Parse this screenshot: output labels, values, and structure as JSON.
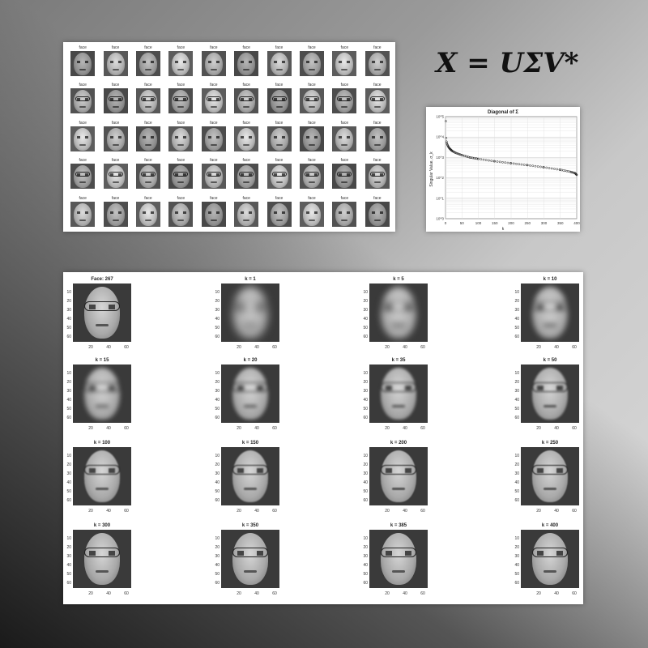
{
  "equation": "X = UΣV*",
  "faces_panel": {
    "label_prefix": "face",
    "rows": 5,
    "cols": 10
  },
  "sv_chart": {
    "title": "Diagonal of Σ",
    "xlabel": "k",
    "ylabel": "Singular Value, σ_k"
  },
  "chart_data": {
    "type": "scatter",
    "title": "Diagonal of Σ",
    "xlabel": "k",
    "ylabel": "Singular Value, σ_k",
    "yscale": "log",
    "xlim": [
      0,
      400
    ],
    "ylim": [
      1,
      100000
    ],
    "x_ticks": [
      "0",
      "50",
      "100",
      "150",
      "200",
      "250",
      "300",
      "350",
      "400"
    ],
    "y_ticks": [
      "10^0",
      "10^1",
      "10^2",
      "10^3",
      "10^4",
      "10^5"
    ],
    "grid": true,
    "series": [
      {
        "x": [
          1,
          2,
          3,
          5,
          8,
          12,
          20,
          30,
          50,
          75,
          100,
          150,
          200,
          250,
          300,
          350,
          380,
          395,
          400
        ],
        "values": [
          60000,
          9000,
          6000,
          4500,
          3500,
          2800,
          2100,
          1700,
          1300,
          1000,
          850,
          650,
          520,
          420,
          330,
          250,
          200,
          170,
          140
        ]
      }
    ]
  },
  "reconstructions": {
    "cells": [
      {
        "title": "Face: 267",
        "blur": 0
      },
      {
        "title": "k = 1",
        "blur": 5
      },
      {
        "title": "k = 5",
        "blur": 4
      },
      {
        "title": "k = 10",
        "blur": 3.2
      },
      {
        "title": "k = 15",
        "blur": 2.6
      },
      {
        "title": "k = 20",
        "blur": 2.2
      },
      {
        "title": "k = 35",
        "blur": 1.6
      },
      {
        "title": "k = 50",
        "blur": 1.2
      },
      {
        "title": "k = 100",
        "blur": 0.9
      },
      {
        "title": "k = 150",
        "blur": 0.7
      },
      {
        "title": "k = 200",
        "blur": 0.5
      },
      {
        "title": "k = 250",
        "blur": 0.4
      },
      {
        "title": "k = 300",
        "blur": 0.3
      },
      {
        "title": "k = 350",
        "blur": 0.2
      },
      {
        "title": "k = 385",
        "blur": 0.1
      },
      {
        "title": "k = 400",
        "blur": 0
      }
    ],
    "y_ticks": [
      "10",
      "20",
      "30",
      "40",
      "50",
      "60"
    ],
    "x_ticks": [
      "20",
      "40",
      "60"
    ]
  }
}
